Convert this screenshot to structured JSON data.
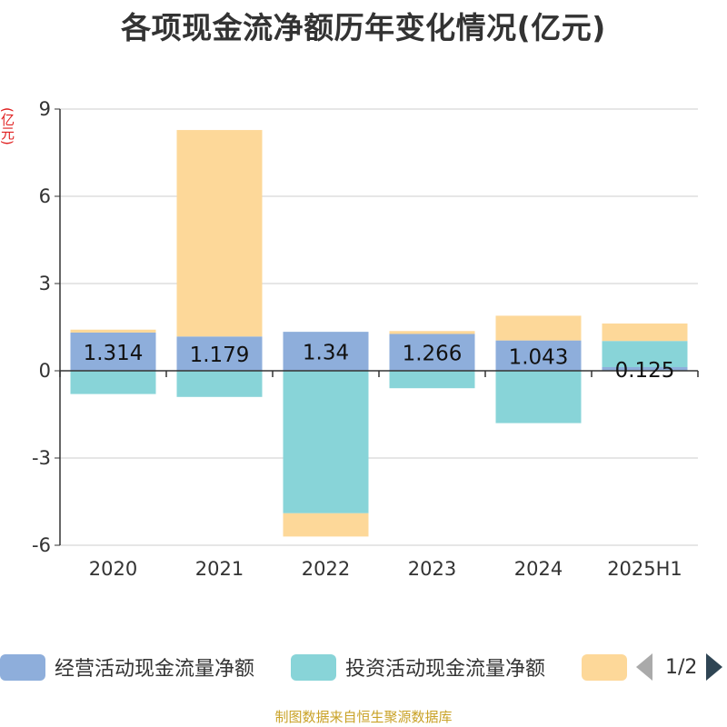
{
  "title": "各项现金流净额历年变化情况(亿元)",
  "unit_label": "(亿元)",
  "source": "制图数据来自恒生聚源数据库",
  "legend": {
    "items": [
      {
        "label": "经营活动现金流量净额",
        "color": "#8eaedb"
      },
      {
        "label": "投资活动现金流量净额",
        "color": "#88d4d8"
      },
      {
        "label": "",
        "color": "#fdd899"
      }
    ],
    "page": "1/2"
  },
  "chart_data": {
    "type": "bar",
    "stacked": true,
    "categories": [
      "2020",
      "2021",
      "2022",
      "2023",
      "2024",
      "2025H1"
    ],
    "series": [
      {
        "name": "经营活动现金流量净额",
        "color": "#8eaedb",
        "values": [
          1.314,
          1.179,
          1.34,
          1.266,
          1.043,
          0.125
        ],
        "labels": [
          "1.314",
          "1.179",
          "1.34",
          "1.266",
          "1.043",
          "0.125"
        ]
      },
      {
        "name": "投资活动现金流量净额",
        "color": "#88d4d8",
        "values": [
          -0.8,
          -0.9,
          -4.9,
          -0.6,
          -1.8,
          0.9
        ]
      },
      {
        "name": "",
        "color": "#fdd899",
        "values": [
          0.1,
          7.1,
          -0.8,
          0.1,
          0.85,
          0.6
        ]
      }
    ],
    "ylim": [
      -6,
      9
    ],
    "yticks": [
      -6,
      -3,
      0,
      3,
      6,
      9
    ],
    "grid": true
  }
}
